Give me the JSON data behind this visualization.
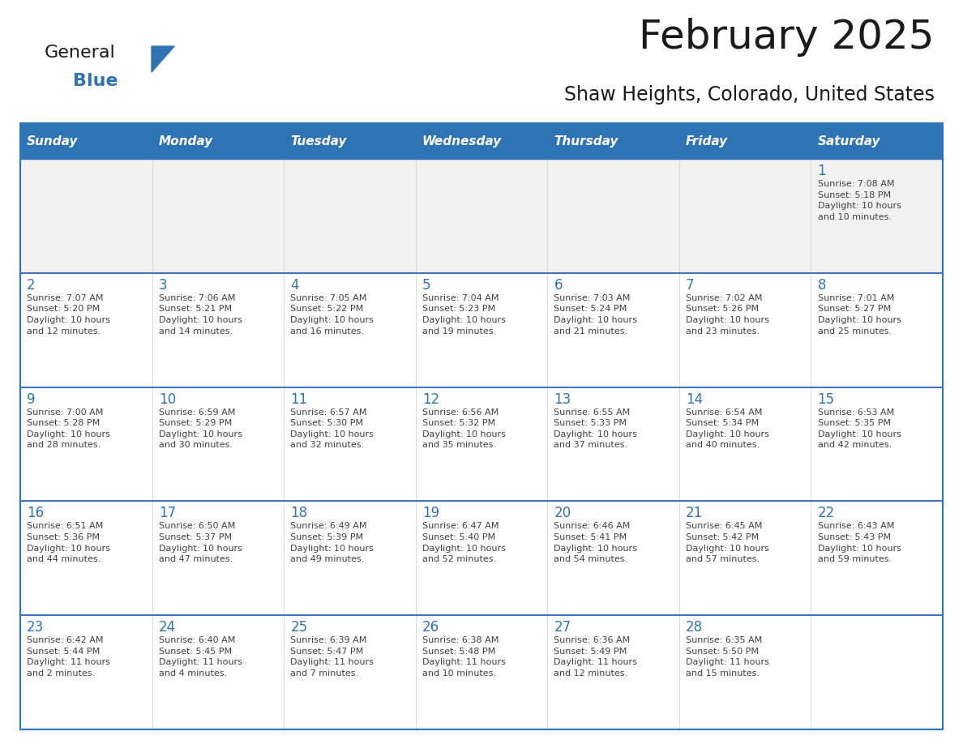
{
  "title": "February 2025",
  "subtitle": "Shaw Heights, Colorado, United States",
  "header_bg": "#2E74B5",
  "header_text_color": "#FFFFFF",
  "cell_bg_gray": "#F2F2F2",
  "cell_bg_white": "#FFFFFF",
  "border_color": "#2E74B5",
  "row_line_color": "#4472C4",
  "day_headers": [
    "Sunday",
    "Monday",
    "Tuesday",
    "Wednesday",
    "Thursday",
    "Friday",
    "Saturday"
  ],
  "title_color": "#1a1a1a",
  "subtitle_color": "#1a1a1a",
  "day_number_color": "#2E74B5",
  "cell_text_color": "#404040",
  "logo_general_color": "#1a1a1a",
  "logo_blue_color": "#2E74B5",
  "logo_triangle_color": "#2E74B5",
  "calendar_data": [
    [
      {
        "day": "",
        "info": ""
      },
      {
        "day": "",
        "info": ""
      },
      {
        "day": "",
        "info": ""
      },
      {
        "day": "",
        "info": ""
      },
      {
        "day": "",
        "info": ""
      },
      {
        "day": "",
        "info": ""
      },
      {
        "day": "1",
        "info": "Sunrise: 7:08 AM\nSunset: 5:18 PM\nDaylight: 10 hours\nand 10 minutes."
      }
    ],
    [
      {
        "day": "2",
        "info": "Sunrise: 7:07 AM\nSunset: 5:20 PM\nDaylight: 10 hours\nand 12 minutes."
      },
      {
        "day": "3",
        "info": "Sunrise: 7:06 AM\nSunset: 5:21 PM\nDaylight: 10 hours\nand 14 minutes."
      },
      {
        "day": "4",
        "info": "Sunrise: 7:05 AM\nSunset: 5:22 PM\nDaylight: 10 hours\nand 16 minutes."
      },
      {
        "day": "5",
        "info": "Sunrise: 7:04 AM\nSunset: 5:23 PM\nDaylight: 10 hours\nand 19 minutes."
      },
      {
        "day": "6",
        "info": "Sunrise: 7:03 AM\nSunset: 5:24 PM\nDaylight: 10 hours\nand 21 minutes."
      },
      {
        "day": "7",
        "info": "Sunrise: 7:02 AM\nSunset: 5:26 PM\nDaylight: 10 hours\nand 23 minutes."
      },
      {
        "day": "8",
        "info": "Sunrise: 7:01 AM\nSunset: 5:27 PM\nDaylight: 10 hours\nand 25 minutes."
      }
    ],
    [
      {
        "day": "9",
        "info": "Sunrise: 7:00 AM\nSunset: 5:28 PM\nDaylight: 10 hours\nand 28 minutes."
      },
      {
        "day": "10",
        "info": "Sunrise: 6:59 AM\nSunset: 5:29 PM\nDaylight: 10 hours\nand 30 minutes."
      },
      {
        "day": "11",
        "info": "Sunrise: 6:57 AM\nSunset: 5:30 PM\nDaylight: 10 hours\nand 32 minutes."
      },
      {
        "day": "12",
        "info": "Sunrise: 6:56 AM\nSunset: 5:32 PM\nDaylight: 10 hours\nand 35 minutes."
      },
      {
        "day": "13",
        "info": "Sunrise: 6:55 AM\nSunset: 5:33 PM\nDaylight: 10 hours\nand 37 minutes."
      },
      {
        "day": "14",
        "info": "Sunrise: 6:54 AM\nSunset: 5:34 PM\nDaylight: 10 hours\nand 40 minutes."
      },
      {
        "day": "15",
        "info": "Sunrise: 6:53 AM\nSunset: 5:35 PM\nDaylight: 10 hours\nand 42 minutes."
      }
    ],
    [
      {
        "day": "16",
        "info": "Sunrise: 6:51 AM\nSunset: 5:36 PM\nDaylight: 10 hours\nand 44 minutes."
      },
      {
        "day": "17",
        "info": "Sunrise: 6:50 AM\nSunset: 5:37 PM\nDaylight: 10 hours\nand 47 minutes."
      },
      {
        "day": "18",
        "info": "Sunrise: 6:49 AM\nSunset: 5:39 PM\nDaylight: 10 hours\nand 49 minutes."
      },
      {
        "day": "19",
        "info": "Sunrise: 6:47 AM\nSunset: 5:40 PM\nDaylight: 10 hours\nand 52 minutes."
      },
      {
        "day": "20",
        "info": "Sunrise: 6:46 AM\nSunset: 5:41 PM\nDaylight: 10 hours\nand 54 minutes."
      },
      {
        "day": "21",
        "info": "Sunrise: 6:45 AM\nSunset: 5:42 PM\nDaylight: 10 hours\nand 57 minutes."
      },
      {
        "day": "22",
        "info": "Sunrise: 6:43 AM\nSunset: 5:43 PM\nDaylight: 10 hours\nand 59 minutes."
      }
    ],
    [
      {
        "day": "23",
        "info": "Sunrise: 6:42 AM\nSunset: 5:44 PM\nDaylight: 11 hours\nand 2 minutes."
      },
      {
        "day": "24",
        "info": "Sunrise: 6:40 AM\nSunset: 5:45 PM\nDaylight: 11 hours\nand 4 minutes."
      },
      {
        "day": "25",
        "info": "Sunrise: 6:39 AM\nSunset: 5:47 PM\nDaylight: 11 hours\nand 7 minutes."
      },
      {
        "day": "26",
        "info": "Sunrise: 6:38 AM\nSunset: 5:48 PM\nDaylight: 11 hours\nand 10 minutes."
      },
      {
        "day": "27",
        "info": "Sunrise: 6:36 AM\nSunset: 5:49 PM\nDaylight: 11 hours\nand 12 minutes."
      },
      {
        "day": "28",
        "info": "Sunrise: 6:35 AM\nSunset: 5:50 PM\nDaylight: 11 hours\nand 15 minutes."
      },
      {
        "day": "",
        "info": ""
      }
    ]
  ]
}
